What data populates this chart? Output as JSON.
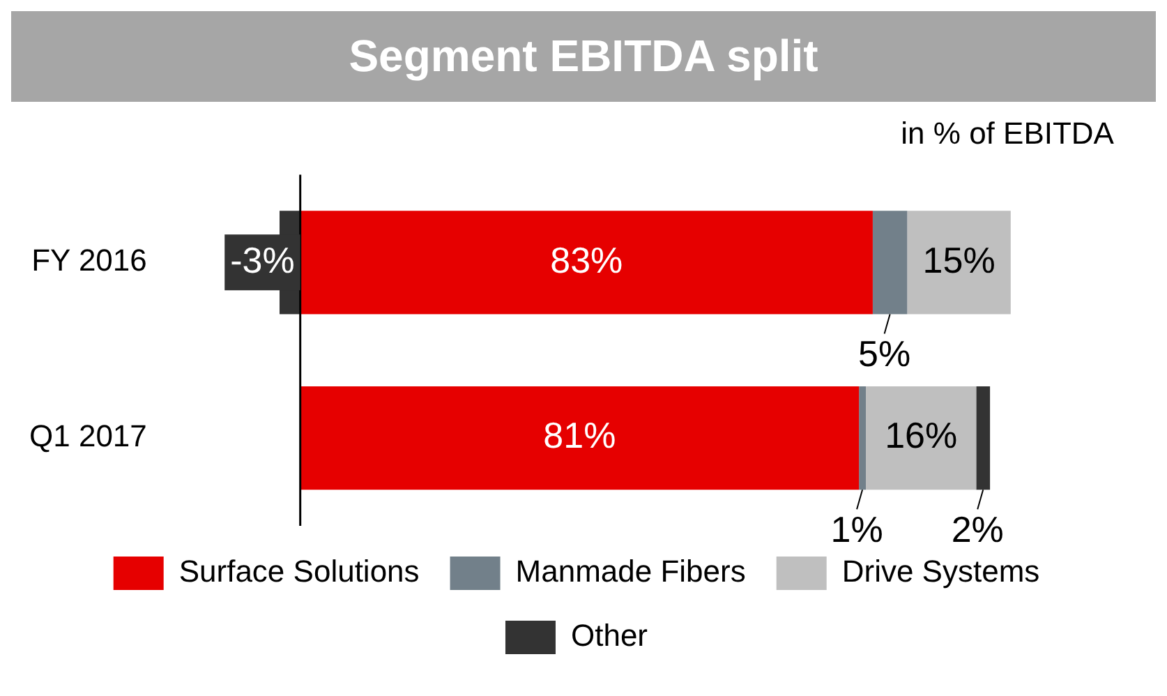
{
  "chart_data": {
    "type": "bar",
    "orientation": "horizontal",
    "stacked": true,
    "relative": false,
    "title": "Segment EBITDA split",
    "subtitle": "in % of EBITDA",
    "categories": [
      "FY 2016",
      "Q1 2017"
    ],
    "legend": "bottom",
    "series": [
      {
        "name": "Surface Solutions",
        "color": "#e60000",
        "values": [
          83,
          81
        ],
        "value_labels": [
          "83%",
          "81%"
        ]
      },
      {
        "name": "Manmade Fibers",
        "color": "#72808a",
        "values": [
          5,
          1
        ],
        "value_labels": [
          "5%",
          "1%"
        ]
      },
      {
        "name": "Drive Systems",
        "color": "#bfbfbf",
        "values": [
          15,
          16
        ],
        "value_labels": [
          "15%",
          "16%"
        ]
      },
      {
        "name": "Other",
        "color": "#333333",
        "values": [
          -3,
          2
        ],
        "value_labels": [
          "-3%",
          "2%"
        ]
      }
    ]
  }
}
